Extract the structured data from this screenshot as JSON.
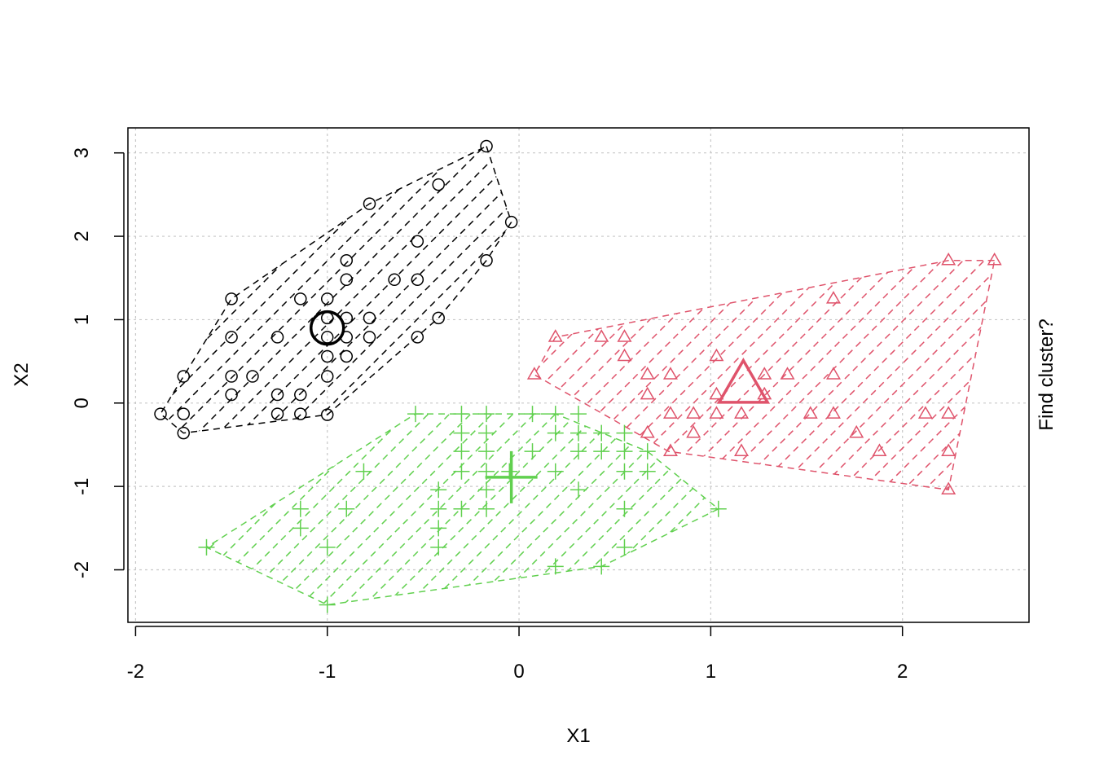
{
  "chart_data": {
    "type": "scatter",
    "title": "",
    "xlabel": "X1",
    "ylabel": "X2",
    "right_label": "Find cluster?",
    "xlim": [
      -2.04,
      2.66
    ],
    "ylim": [
      -2.63,
      3.3
    ],
    "xticks": [
      -2,
      -1,
      0,
      1,
      2
    ],
    "yticks": [
      -2,
      -1,
      0,
      1,
      2,
      3
    ],
    "grid": true,
    "legend": "none",
    "series": [
      {
        "color": "#000000",
        "marker": "circle",
        "center": [
          -1.0,
          0.9
        ],
        "hull": [
          [
            -0.17,
            3.08
          ],
          [
            -0.04,
            2.17
          ],
          [
            -0.17,
            1.71
          ],
          [
            -0.42,
            1.02
          ],
          [
            -1.0,
            -0.14
          ],
          [
            -1.75,
            -0.36
          ],
          [
            -1.87,
            -0.13
          ],
          [
            -1.75,
            0.32
          ],
          [
            -1.5,
            1.25
          ],
          [
            -0.78,
            2.39
          ]
        ],
        "points": [
          [
            -0.17,
            3.08
          ],
          [
            -0.42,
            2.62
          ],
          [
            -0.78,
            2.39
          ],
          [
            -0.04,
            2.17
          ],
          [
            -0.53,
            1.94
          ],
          [
            -0.9,
            1.71
          ],
          [
            -0.17,
            1.71
          ],
          [
            -0.9,
            1.48
          ],
          [
            -0.65,
            1.48
          ],
          [
            -0.53,
            1.48
          ],
          [
            -1.5,
            1.25
          ],
          [
            -1.14,
            1.25
          ],
          [
            -1.0,
            1.25
          ],
          [
            -1.0,
            1.02
          ],
          [
            -0.9,
            1.02
          ],
          [
            -0.78,
            1.02
          ],
          [
            -0.42,
            1.02
          ],
          [
            -1.5,
            0.79
          ],
          [
            -1.26,
            0.79
          ],
          [
            -1.0,
            0.79
          ],
          [
            -0.9,
            0.79
          ],
          [
            -0.78,
            0.79
          ],
          [
            -0.53,
            0.79
          ],
          [
            -1.0,
            0.56
          ],
          [
            -0.9,
            0.56
          ],
          [
            -1.75,
            0.32
          ],
          [
            -1.5,
            0.32
          ],
          [
            -1.39,
            0.32
          ],
          [
            -1.0,
            0.32
          ],
          [
            -1.5,
            0.1
          ],
          [
            -1.26,
            0.1
          ],
          [
            -1.14,
            0.1
          ],
          [
            -1.87,
            -0.13
          ],
          [
            -1.75,
            -0.13
          ],
          [
            -1.26,
            -0.13
          ],
          [
            -1.14,
            -0.13
          ],
          [
            -1.0,
            -0.14
          ],
          [
            -1.75,
            -0.36
          ]
        ]
      },
      {
        "color": "#DF536B",
        "marker": "triangle",
        "center": [
          1.17,
          0.2
        ],
        "hull": [
          [
            2.48,
            1.71
          ],
          [
            2.24,
            1.71
          ],
          [
            0.19,
            0.79
          ],
          [
            0.08,
            0.34
          ],
          [
            0.78,
            -0.58
          ],
          [
            2.24,
            -1.04
          ]
        ],
        "points": [
          [
            2.24,
            1.71
          ],
          [
            2.48,
            1.71
          ],
          [
            1.64,
            1.25
          ],
          [
            0.19,
            0.79
          ],
          [
            0.43,
            0.79
          ],
          [
            0.55,
            0.79
          ],
          [
            0.55,
            0.56
          ],
          [
            1.03,
            0.56
          ],
          [
            0.08,
            0.34
          ],
          [
            0.67,
            0.34
          ],
          [
            0.79,
            0.34
          ],
          [
            1.28,
            0.34
          ],
          [
            1.4,
            0.34
          ],
          [
            1.64,
            0.34
          ],
          [
            0.67,
            0.1
          ],
          [
            1.03,
            0.1
          ],
          [
            1.28,
            0.1
          ],
          [
            0.79,
            -0.13
          ],
          [
            0.91,
            -0.13
          ],
          [
            1.03,
            -0.13
          ],
          [
            1.16,
            -0.13
          ],
          [
            1.52,
            -0.13
          ],
          [
            1.64,
            -0.13
          ],
          [
            2.12,
            -0.13
          ],
          [
            2.24,
            -0.13
          ],
          [
            0.67,
            -0.36
          ],
          [
            0.91,
            -0.36
          ],
          [
            1.76,
            -0.36
          ],
          [
            0.79,
            -0.58
          ],
          [
            1.16,
            -0.58
          ],
          [
            1.88,
            -0.58
          ],
          [
            2.24,
            -0.58
          ],
          [
            2.24,
            -1.04
          ]
        ]
      },
      {
        "color": "#61D04F",
        "marker": "plus",
        "center": [
          -0.04,
          -0.89
        ],
        "hull": [
          [
            -0.54,
            -0.13
          ],
          [
            0.19,
            -0.13
          ],
          [
            0.67,
            -0.58
          ],
          [
            1.04,
            -1.27
          ],
          [
            0.43,
            -1.96
          ],
          [
            -1.0,
            -2.42
          ],
          [
            -1.63,
            -1.73
          ]
        ],
        "points": [
          [
            -0.54,
            -0.13
          ],
          [
            -0.3,
            -0.13
          ],
          [
            -0.17,
            -0.13
          ],
          [
            0.07,
            -0.13
          ],
          [
            0.19,
            -0.13
          ],
          [
            0.31,
            -0.13
          ],
          [
            -0.3,
            -0.36
          ],
          [
            -0.17,
            -0.36
          ],
          [
            0.19,
            -0.36
          ],
          [
            0.31,
            -0.36
          ],
          [
            0.43,
            -0.36
          ],
          [
            0.55,
            -0.36
          ],
          [
            -0.3,
            -0.58
          ],
          [
            -0.17,
            -0.58
          ],
          [
            0.07,
            -0.58
          ],
          [
            0.31,
            -0.58
          ],
          [
            0.43,
            -0.58
          ],
          [
            0.55,
            -0.58
          ],
          [
            0.67,
            -0.58
          ],
          [
            -0.3,
            -0.82
          ],
          [
            -0.17,
            -0.82
          ],
          [
            -0.05,
            -0.82
          ],
          [
            0.19,
            -0.82
          ],
          [
            0.55,
            -0.82
          ],
          [
            0.67,
            -0.82
          ],
          [
            -0.81,
            -0.82
          ],
          [
            -0.42,
            -1.04
          ],
          [
            -0.17,
            -1.04
          ],
          [
            0.31,
            -1.04
          ],
          [
            -0.42,
            -1.27
          ],
          [
            -0.3,
            -1.27
          ],
          [
            -0.17,
            -1.27
          ],
          [
            -0.9,
            -1.27
          ],
          [
            -1.14,
            -1.27
          ],
          [
            0.55,
            -1.27
          ],
          [
            1.04,
            -1.27
          ],
          [
            -0.42,
            -1.5
          ],
          [
            -1.14,
            -1.5
          ],
          [
            -0.42,
            -1.73
          ],
          [
            -1.0,
            -1.73
          ],
          [
            0.55,
            -1.73
          ],
          [
            -1.63,
            -1.73
          ],
          [
            0.19,
            -1.96
          ],
          [
            0.43,
            -1.96
          ],
          [
            -1.0,
            -2.42
          ]
        ]
      }
    ]
  }
}
